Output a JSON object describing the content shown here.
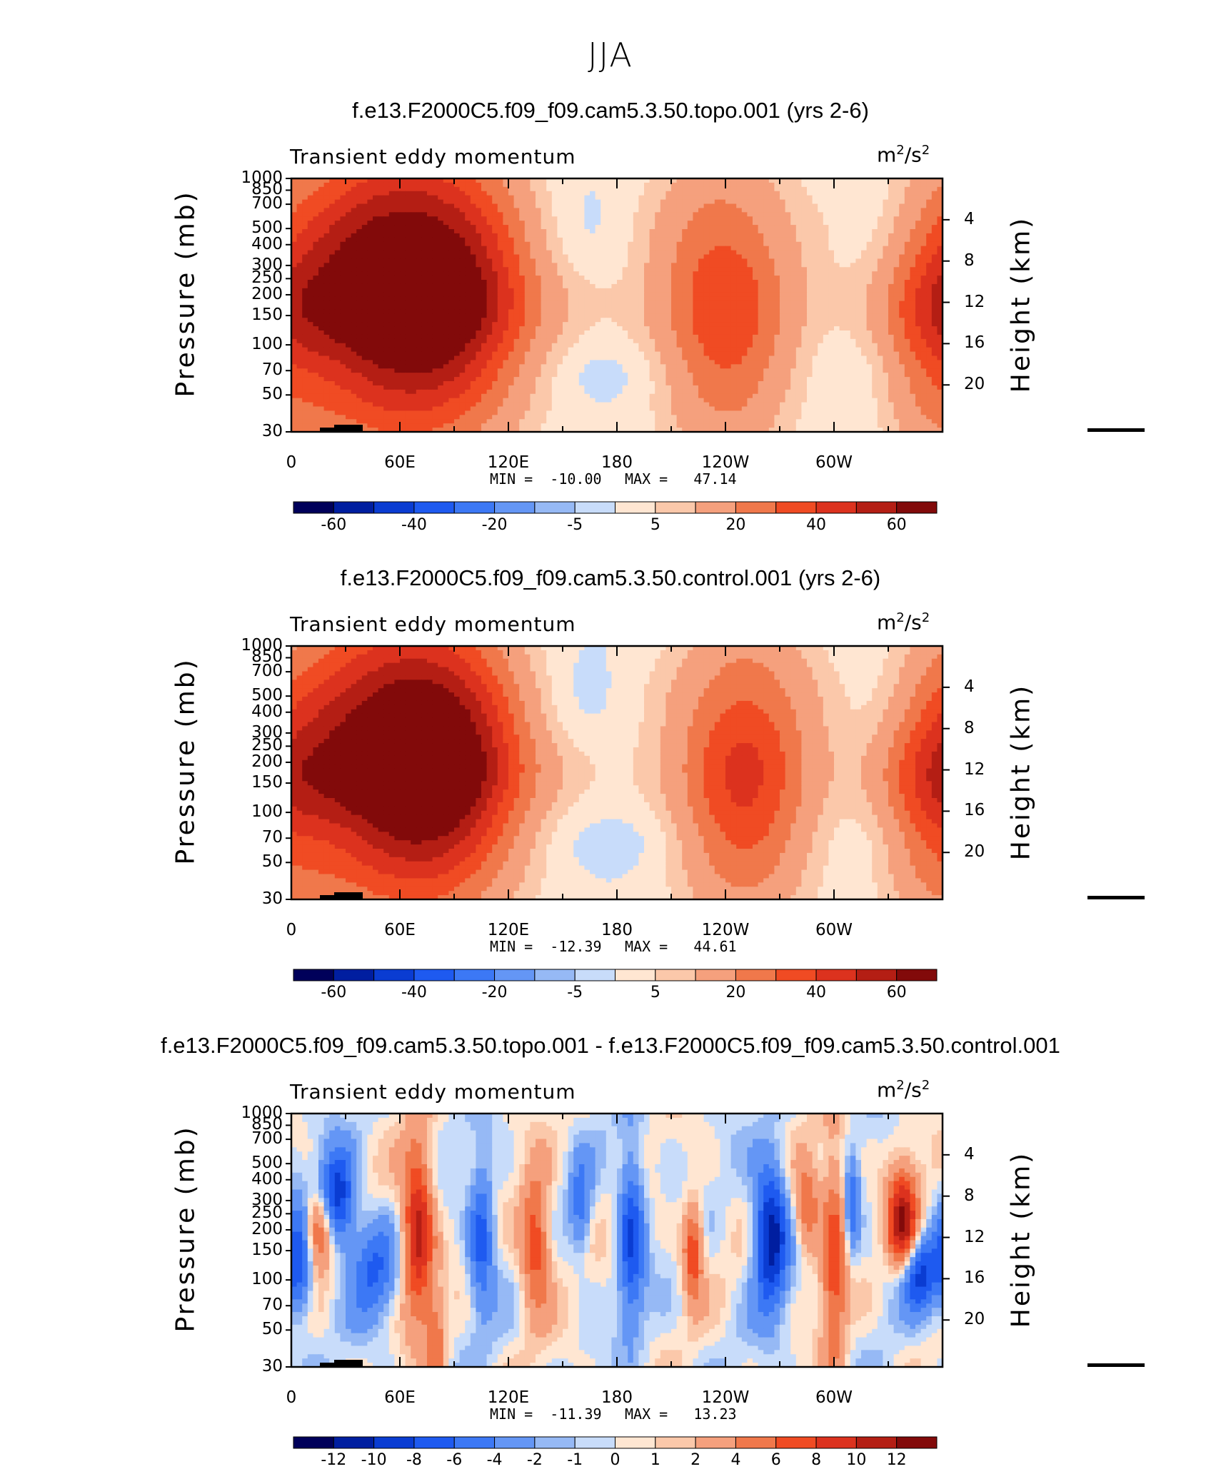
{
  "figure": {
    "title": "JJA"
  },
  "chart_data": [
    {
      "type": "heatmap",
      "title": "f.e13.F2000C5.f09_f09.cam5.3.50.topo.001 (yrs 2-6)",
      "left_label": "Transient eddy momentum",
      "units": "m",
      "units_exp": "2",
      "units_rest": "/s",
      "units_exp2": "2",
      "ylabel": "Pressure (mb)",
      "ylabel_right": "Height (km)",
      "yticks": [
        "30",
        "50",
        "70",
        "100",
        "150",
        "200",
        "250",
        "300",
        "400",
        "500",
        "700",
        "850",
        "1000"
      ],
      "ytick_values": [
        30,
        50,
        70,
        100,
        150,
        200,
        250,
        300,
        400,
        500,
        700,
        850,
        1000
      ],
      "height_ticks": [
        "20",
        "16",
        "12",
        "8",
        "4"
      ],
      "height_values": [
        20,
        16,
        12,
        8,
        4
      ],
      "xticks": [
        "0",
        "60E",
        "120E",
        "180",
        "120W",
        "60W"
      ],
      "xtick_values": [
        0,
        60,
        120,
        180,
        240,
        300
      ],
      "xlim": [
        0,
        360
      ],
      "ylim": [
        1000,
        30
      ],
      "min_label": "MIN =  -10.00",
      "max_label": "MAX =   47.14",
      "colorbar_ticks": [
        "-60",
        "-40",
        "-20",
        "-5",
        "5",
        "20",
        "40",
        "60"
      ],
      "colorbar_levels": [
        -70,
        -60,
        -50,
        -40,
        -30,
        -20,
        -10,
        -5,
        0,
        5,
        10,
        20,
        30,
        40,
        50,
        60,
        70
      ],
      "jets": [
        {
          "lon": 35,
          "p": 150,
          "value": 44,
          "w": 55,
          "h": 0.28
        },
        {
          "lon": 70,
          "p": 130,
          "value": 47.14,
          "w": 55,
          "h": 0.3
        },
        {
          "lon": 100,
          "p": 160,
          "value": 35,
          "w": 55,
          "h": 0.25
        },
        {
          "lon": 240,
          "p": 170,
          "value": 38,
          "w": 50,
          "h": 0.28
        },
        {
          "lon": 355,
          "p": 200,
          "value": 30,
          "w": 40,
          "h": 0.25
        }
      ],
      "min_value": -10.0,
      "max_value": 47.14
    },
    {
      "type": "heatmap",
      "title": "f.e13.F2000C5.f09_f09.cam5.3.50.control.001 (yrs 2-6)",
      "left_label": "Transient eddy momentum",
      "units": "m",
      "units_exp": "2",
      "units_rest": "/s",
      "units_exp2": "2",
      "ylabel": "Pressure (mb)",
      "ylabel_right": "Height (km)",
      "yticks": [
        "30",
        "50",
        "70",
        "100",
        "150",
        "200",
        "250",
        "300",
        "400",
        "500",
        "700",
        "850",
        "1000"
      ],
      "ytick_values": [
        30,
        50,
        70,
        100,
        150,
        200,
        250,
        300,
        400,
        500,
        700,
        850,
        1000
      ],
      "height_ticks": [
        "20",
        "16",
        "12",
        "8",
        "4"
      ],
      "height_values": [
        20,
        16,
        12,
        8,
        4
      ],
      "xticks": [
        "0",
        "60E",
        "120E",
        "180",
        "120W",
        "60W"
      ],
      "xtick_values": [
        0,
        60,
        120,
        180,
        240,
        300
      ],
      "xlim": [
        0,
        360
      ],
      "ylim": [
        1000,
        30
      ],
      "min_label": "MIN =  -12.39",
      "max_label": "MAX =   44.61",
      "colorbar_ticks": [
        "-60",
        "-40",
        "-20",
        "-5",
        "5",
        "20",
        "40",
        "60"
      ],
      "colorbar_levels": [
        -70,
        -60,
        -50,
        -40,
        -30,
        -20,
        -10,
        -5,
        0,
        5,
        10,
        20,
        30,
        40,
        50,
        60,
        70
      ],
      "jets": [
        {
          "lon": 35,
          "p": 150,
          "value": 40,
          "w": 55,
          "h": 0.28
        },
        {
          "lon": 70,
          "p": 130,
          "value": 44.61,
          "w": 55,
          "h": 0.3
        },
        {
          "lon": 95,
          "p": 160,
          "value": 38,
          "w": 55,
          "h": 0.25
        },
        {
          "lon": 250,
          "p": 170,
          "value": 42,
          "w": 50,
          "h": 0.28
        },
        {
          "lon": 355,
          "p": 200,
          "value": 32,
          "w": 40,
          "h": 0.25
        }
      ],
      "min_value": -12.39,
      "max_value": 44.61
    },
    {
      "type": "heatmap",
      "title": "f.e13.F2000C5.f09_f09.cam5.3.50.topo.001 - f.e13.F2000C5.f09_f09.cam5.3.50.control.001",
      "left_label": "Transient eddy momentum",
      "units": "m",
      "units_exp": "2",
      "units_rest": "/s",
      "units_exp2": "2",
      "ylabel": "Pressure (mb)",
      "ylabel_right": "Height (km)",
      "yticks": [
        "30",
        "50",
        "70",
        "100",
        "150",
        "200",
        "250",
        "300",
        "400",
        "500",
        "700",
        "850",
        "1000"
      ],
      "ytick_values": [
        30,
        50,
        70,
        100,
        150,
        200,
        250,
        300,
        400,
        500,
        700,
        850,
        1000
      ],
      "height_ticks": [
        "20",
        "16",
        "12",
        "8",
        "4"
      ],
      "height_values": [
        20,
        16,
        12,
        8,
        4
      ],
      "xticks": [
        "0",
        "60E",
        "120E",
        "180",
        "120W",
        "60W"
      ],
      "xtick_values": [
        0,
        60,
        120,
        180,
        240,
        300
      ],
      "xlim": [
        0,
        360
      ],
      "ylim": [
        1000,
        30
      ],
      "min_label": "MIN =  -11.39",
      "max_label": "MAX =   13.23",
      "colorbar_ticks": [
        "-12",
        "-10",
        "-8",
        "-6",
        "-4",
        "-2",
        "-1",
        "0",
        "1",
        "2",
        "4",
        "6",
        "8",
        "10",
        "12"
      ],
      "colorbar_levels": [
        -14,
        -12,
        -10,
        -8,
        -6,
        -4,
        -2,
        -1,
        0,
        1,
        2,
        4,
        6,
        8,
        10,
        12,
        14
      ],
      "anomalies": [
        {
          "lon": 25,
          "p": 100,
          "value": -10,
          "w": 14,
          "h": 0.1
        },
        {
          "lon": 15,
          "p": 150,
          "value": 9,
          "w": 12,
          "h": 0.08
        },
        {
          "lon": 5,
          "p": 220,
          "value": -8,
          "w": 10,
          "h": 0.12
        },
        {
          "lon": 70,
          "p": 150,
          "value": 11,
          "w": 12,
          "h": 0.18
        },
        {
          "lon": 105,
          "p": 170,
          "value": -7,
          "w": 10,
          "h": 0.15
        },
        {
          "lon": 135,
          "p": 180,
          "value": 8,
          "w": 12,
          "h": 0.14
        },
        {
          "lon": 188,
          "p": 160,
          "value": -8,
          "w": 10,
          "h": 0.18
        },
        {
          "lon": 222,
          "p": 200,
          "value": 8,
          "w": 8,
          "h": 0.1
        },
        {
          "lon": 265,
          "p": 160,
          "value": -11.39,
          "w": 13,
          "h": 0.15
        },
        {
          "lon": 300,
          "p": 220,
          "value": 7,
          "w": 10,
          "h": 0.25
        },
        {
          "lon": 338,
          "p": 150,
          "value": 13.23,
          "w": 12,
          "h": 0.12
        },
        {
          "lon": 345,
          "p": 270,
          "value": -10,
          "w": 18,
          "h": 0.08
        },
        {
          "lon": 45,
          "p": 260,
          "value": -6,
          "w": 18,
          "h": 0.1
        },
        {
          "lon": 160,
          "p": 110,
          "value": -5,
          "w": 8,
          "h": 0.1
        },
        {
          "lon": 285,
          "p": 110,
          "value": 6,
          "w": 10,
          "h": 0.1
        },
        {
          "lon": 310,
          "p": 110,
          "value": -6,
          "w": 6,
          "h": 0.1
        },
        {
          "lon": 80,
          "p": 750,
          "value": 5,
          "w": 8,
          "h": 0.1
        }
      ],
      "min_value": -11.39,
      "max_value": 13.23
    }
  ]
}
